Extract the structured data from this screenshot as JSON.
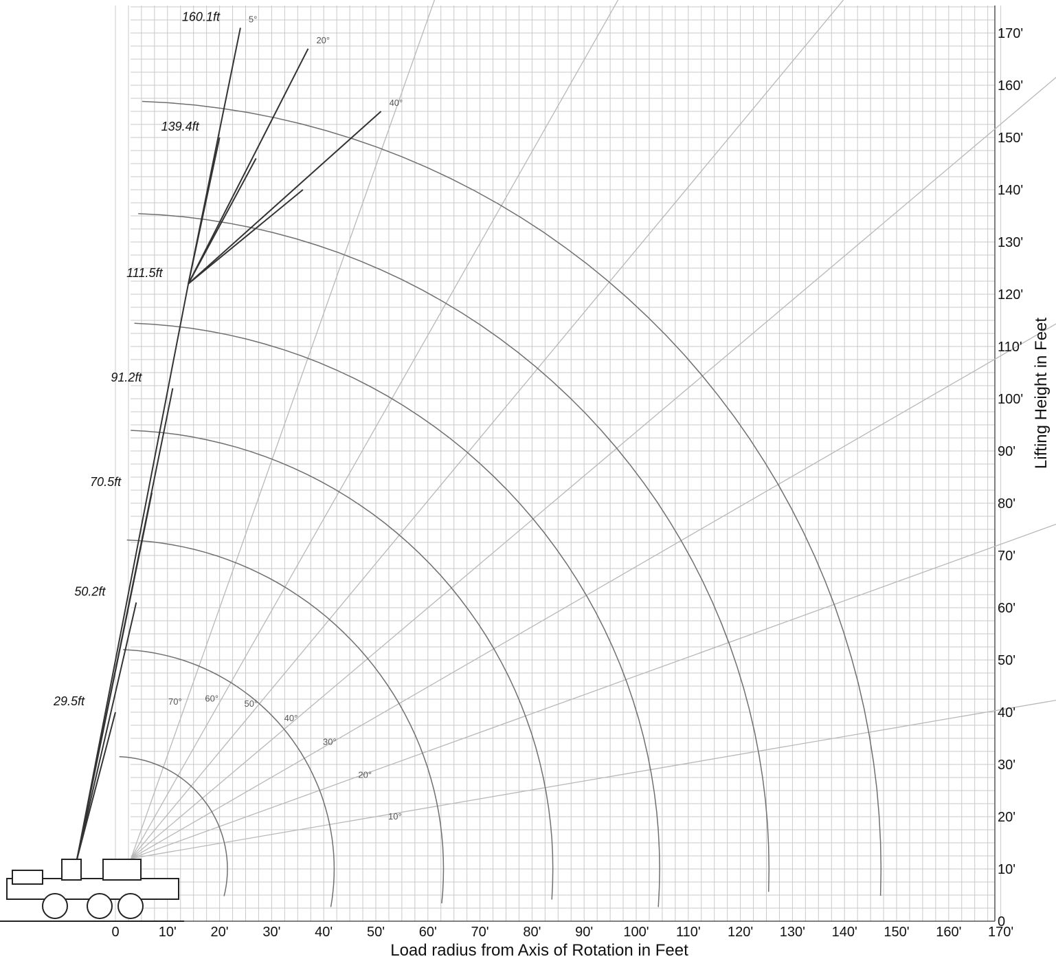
{
  "chart_data": {
    "type": "line",
    "title": "",
    "xlabel": "Load radius from Axis of Rotation in Feet",
    "ylabel": "Lifting Height in Feet",
    "xlim": [
      0,
      170
    ],
    "ylim": [
      0,
      170
    ],
    "x_ticks": [
      "0",
      "10'",
      "20'",
      "30'",
      "40'",
      "50'",
      "60'",
      "70'",
      "80'",
      "90'",
      "100'",
      "110'",
      "120'",
      "130'",
      "140'",
      "150'",
      "160'",
      "170'"
    ],
    "y_ticks": [
      "0",
      "10'",
      "20'",
      "30'",
      "40'",
      "50'",
      "60'",
      "70'",
      "80'",
      "90'",
      "100'",
      "110'",
      "120'",
      "130'",
      "140'",
      "150'",
      "160'",
      "170'"
    ],
    "boom_angle_lines": {
      "labels": [
        "70°",
        "60°",
        "50°",
        "40°",
        "30°",
        "20°",
        "10°"
      ],
      "angles_deg": [
        70,
        60,
        50,
        40,
        30,
        20,
        10
      ]
    },
    "main_boom": {
      "lengths": [
        "29.5ft",
        "50.2ft",
        "70.5ft",
        "91.2ft",
        "111.5ft"
      ],
      "tips": [
        {
          "length_ft": 29.5,
          "x": 0,
          "y": 40
        },
        {
          "length_ft": 50.2,
          "x": 4,
          "y": 61
        },
        {
          "length_ft": 70.5,
          "x": 7,
          "y": 82
        },
        {
          "length_ft": 91.2,
          "x": 11,
          "y": 102
        },
        {
          "length_ft": 111.5,
          "x": 14,
          "y": 122
        }
      ],
      "arc_outer_radius_ft": [
        21.5,
        42,
        63,
        84,
        104.5,
        125.5,
        147
      ]
    },
    "jib": {
      "lengths": [
        "139.4ft",
        "160.1ft"
      ],
      "offset_labels": [
        "5°",
        "20°",
        "40°"
      ],
      "tips": [
        {
          "offset": "5°",
          "section": "139.4ft",
          "x": 20,
          "y": 150
        },
        {
          "offset": "20°",
          "section": "139.4ft",
          "x": 27,
          "y": 146
        },
        {
          "offset": "40°",
          "section": "139.4ft",
          "x": 36,
          "y": 140
        },
        {
          "offset": "5°",
          "section": "160.1ft",
          "x": 24,
          "y": 171
        },
        {
          "offset": "20°",
          "section": "160.1ft",
          "x": 37,
          "y": 167
        },
        {
          "offset": "40°",
          "section": "160.1ft",
          "x": 51,
          "y": 155
        }
      ]
    }
  }
}
